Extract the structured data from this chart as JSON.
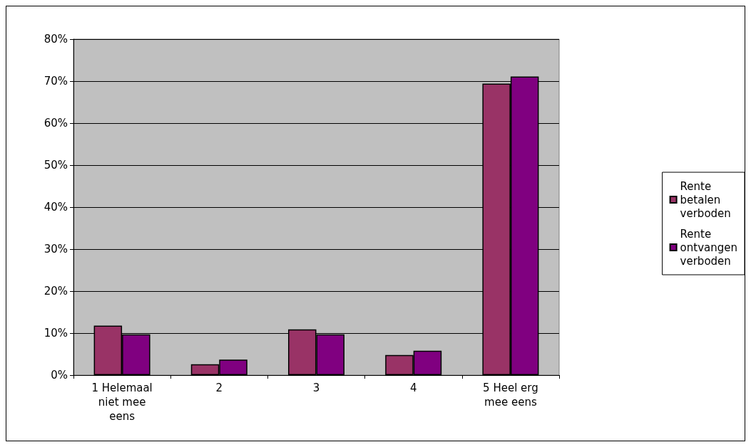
{
  "chart_data": {
    "type": "bar",
    "categories": [
      "1 Helemaal niet mee eens",
      "2",
      "3",
      "4",
      "5 Heel erg mee eens"
    ],
    "series": [
      {
        "name": "Rente betalen verboden",
        "color": "#993366",
        "values": [
          11.8,
          2.6,
          10.9,
          4.8,
          69.4
        ]
      },
      {
        "name": "Rente ontvangen verboden",
        "color": "#800080",
        "values": [
          9.7,
          3.7,
          9.7,
          5.8,
          71.1
        ]
      }
    ],
    "ylim": [
      0,
      80
    ],
    "yticks": [
      {
        "value": 0,
        "label": "0%"
      },
      {
        "value": 10,
        "label": "10%"
      },
      {
        "value": 20,
        "label": "20%"
      },
      {
        "value": 30,
        "label": "30%"
      },
      {
        "value": 40,
        "label": "40%"
      },
      {
        "value": 50,
        "label": "50%"
      },
      {
        "value": 60,
        "label": "60%"
      },
      {
        "value": 70,
        "label": "70%"
      },
      {
        "value": 80,
        "label": "80%"
      }
    ],
    "grid": "y",
    "legend": "right"
  }
}
